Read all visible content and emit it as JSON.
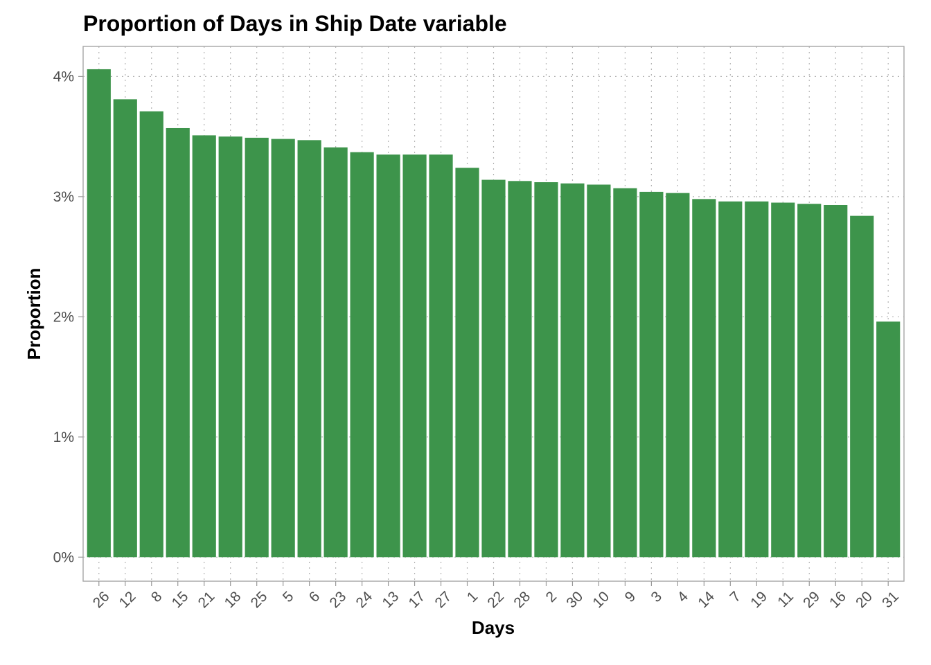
{
  "chart_data": {
    "type": "bar",
    "title": "Proportion of Days in Ship Date variable",
    "xlabel": "Days",
    "ylabel": "Proportion",
    "categories": [
      "26",
      "12",
      "8",
      "15",
      "21",
      "18",
      "25",
      "5",
      "6",
      "23",
      "24",
      "13",
      "17",
      "27",
      "1",
      "22",
      "28",
      "2",
      "30",
      "10",
      "9",
      "3",
      "4",
      "14",
      "7",
      "19",
      "11",
      "29",
      "16",
      "20",
      "31"
    ],
    "values": [
      4.06,
      3.81,
      3.71,
      3.57,
      3.51,
      3.5,
      3.49,
      3.48,
      3.47,
      3.41,
      3.37,
      3.35,
      3.35,
      3.35,
      3.24,
      3.14,
      3.13,
      3.12,
      3.11,
      3.1,
      3.07,
      3.04,
      3.03,
      2.98,
      2.96,
      2.96,
      2.95,
      2.94,
      2.93,
      2.84,
      1.96
    ],
    "value_unit": "percent",
    "ylim": [
      -0.2,
      4.25
    ],
    "yticks": [
      0,
      1,
      2,
      3,
      4
    ],
    "ytick_labels": [
      "0%",
      "1%",
      "2%",
      "3%",
      "4%"
    ],
    "grid": true,
    "bar_color": "#3d944b",
    "xtick_rotation_deg": 45
  }
}
